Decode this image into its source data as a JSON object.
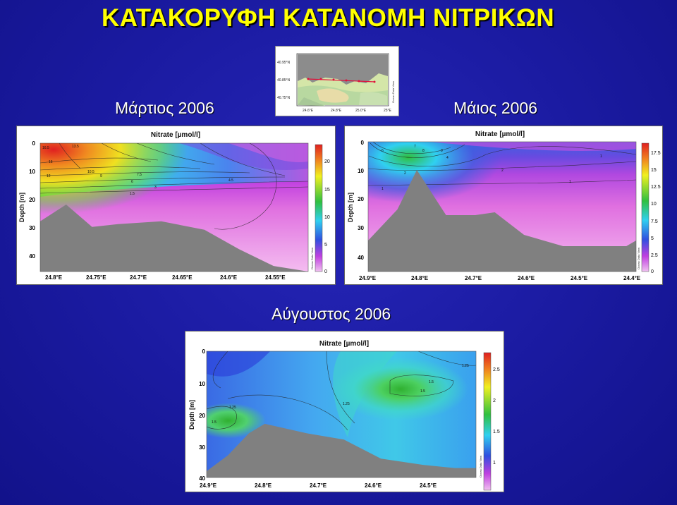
{
  "page": {
    "title": "ΚΑΤΑΚΟΡΥΦΗ ΚΑΤΑΝΟΜΗ ΝΙΤΡΙΚΩΝ",
    "captions": {
      "march": "Μάρτιος 2006",
      "may": "Μάιος 2006",
      "august": "Αύγουστος 2006"
    },
    "colors": {
      "background": "#1a1aa0",
      "title": "#ffff00",
      "seabed": "#808080"
    }
  },
  "inset_map": {
    "lat_labels": [
      "40.95°N",
      "40.85°N",
      "40.75°N"
    ],
    "lon_labels": [
      "24.6°E",
      "24.8°E",
      "25.0°E",
      "25°E"
    ],
    "side_label": "Ocean Data View",
    "station_line_color": "#e0103a"
  },
  "chart_data": [
    {
      "type": "heatmap",
      "title": "Nitrate [µmol/l]",
      "ylabel": "Depth [m]",
      "xlabel": "",
      "xticks": [
        "24.8°E",
        "24.75°E",
        "24.7°E",
        "24.65°E",
        "24.6°E",
        "24.55°E"
      ],
      "x": [
        24.8,
        24.75,
        24.7,
        24.65,
        24.6,
        24.55
      ],
      "xlim": [
        24.82,
        24.51
      ],
      "yticks": [
        "0",
        "10",
        "20",
        "30",
        "40"
      ],
      "ylim": [
        0,
        46
      ],
      "colorbar": {
        "ticks": [
          "20",
          "15",
          "10",
          "5",
          "0"
        ],
        "range": [
          0,
          22
        ],
        "label": "Ocean Data View"
      },
      "contour_labels": [
        "16.5",
        "15",
        "13.5",
        "12",
        "10.5",
        "9",
        "7.5",
        "6",
        "4.5",
        "3",
        "1.5"
      ],
      "seabed_depth": [
        28,
        22,
        30,
        29,
        28,
        31,
        38,
        44,
        46
      ],
      "seabed_x": [
        24.82,
        24.79,
        24.76,
        24.73,
        24.68,
        24.63,
        24.59,
        24.55,
        24.51
      ]
    },
    {
      "type": "heatmap",
      "title": "Nitrate [µmol/l]",
      "ylabel": "Depth [m]",
      "xlabel": "",
      "xticks": [
        "24.9°E",
        "24.8°E",
        "24.7°E",
        "24.6°E",
        "24.5°E",
        "24.4°E"
      ],
      "x": [
        24.9,
        24.8,
        24.7,
        24.6,
        24.5,
        24.4
      ],
      "xlim": [
        24.92,
        24.37
      ],
      "yticks": [
        "0",
        "10",
        "20",
        "30",
        "40"
      ],
      "ylim": [
        0,
        46
      ],
      "colorbar": {
        "ticks": [
          "17.5",
          "15",
          "12.5",
          "10",
          "7.5",
          "5",
          "2.5",
          "0"
        ],
        "range": [
          0,
          18.5
        ],
        "label": "Ocean Data View"
      },
      "contour_labels": [
        "7",
        "8",
        "9",
        "6",
        "4",
        "2",
        "2",
        "1",
        "1",
        "1"
      ],
      "seabed_depth": [
        35,
        24,
        10,
        26,
        26,
        25,
        33,
        37,
        37,
        37,
        35
      ],
      "seabed_x": [
        24.92,
        24.86,
        24.82,
        24.76,
        24.7,
        24.66,
        24.6,
        24.52,
        24.45,
        24.39,
        24.37
      ]
    },
    {
      "type": "heatmap",
      "title": "Nitrate [µmol/l]",
      "ylabel": "Depth [m]",
      "xlabel": "",
      "xticks": [
        "24.9°E",
        "24.8°E",
        "24.7°E",
        "24.6°E",
        "24.5°E"
      ],
      "x": [
        24.9,
        24.8,
        24.7,
        24.6,
        24.5
      ],
      "xlim": [
        24.91,
        24.4
      ],
      "yticks": [
        "0",
        "10",
        "20",
        "30",
        "40"
      ],
      "ylim": [
        0,
        40
      ],
      "colorbar": {
        "ticks": [
          "2.5",
          "2",
          "1.5",
          "1"
        ],
        "range": [
          0.75,
          2.6
        ],
        "label": "Ocean Data View"
      },
      "contour_labels": [
        "1.25",
        "1.5",
        "1.5",
        "1.25",
        "1.25",
        "1.5"
      ],
      "seabed_depth": [
        38,
        33,
        26,
        23,
        26,
        28,
        34,
        36,
        37,
        37
      ],
      "seabed_x": [
        24.91,
        24.87,
        24.83,
        24.8,
        24.72,
        24.65,
        24.58,
        24.5,
        24.44,
        24.4
      ]
    }
  ]
}
